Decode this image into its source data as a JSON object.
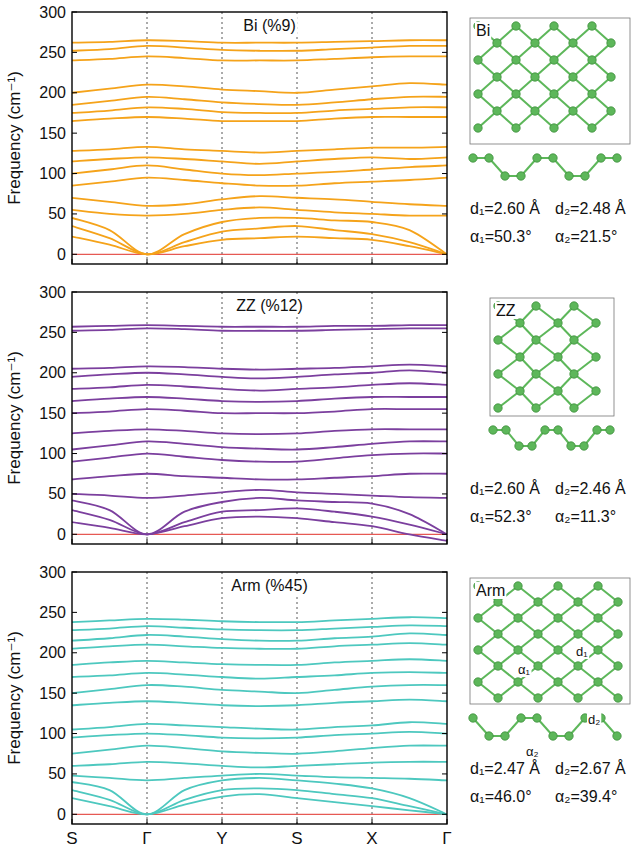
{
  "chart_data": [
    {
      "type": "line",
      "title": "Bi (%9)",
      "y_label": "Frequency (cm⁻¹)",
      "color": "#f5a31a",
      "x": [
        0,
        0.5,
        1,
        1.5,
        2,
        2.5,
        3,
        3.5,
        4,
        4.5,
        5
      ],
      "xlim": [
        0,
        5
      ],
      "xticks": [
        {
          "value": 0,
          "label": "S"
        },
        {
          "value": 1,
          "label": "Γ"
        },
        {
          "value": 2,
          "label": "Y"
        },
        {
          "value": 3,
          "label": "S"
        },
        {
          "value": 4,
          "label": "X"
        },
        {
          "value": 5,
          "label": "Γ"
        }
      ],
      "ylim": [
        -12,
        300
      ],
      "yticks": [
        0,
        50,
        100,
        150,
        200,
        250,
        300
      ],
      "grid": true,
      "tick_labels": "y",
      "structure_label": "Bi",
      "annotations": [
        "d₁=2.60 Å",
        "d₂=2.48 Å",
        "α₁=50.3°",
        "α₂=21.5°"
      ],
      "series": [
        {
          "values": [
            22,
            12,
            0,
            10,
            18,
            20,
            22,
            20,
            18,
            10,
            0
          ]
        },
        {
          "values": [
            35,
            20,
            0,
            15,
            28,
            32,
            35,
            30,
            25,
            15,
            0
          ]
        },
        {
          "values": [
            45,
            30,
            0,
            25,
            40,
            45,
            45,
            42,
            40,
            30,
            0
          ]
        },
        {
          "values": [
            55,
            50,
            48,
            50,
            55,
            58,
            55,
            52,
            50,
            48,
            48
          ]
        },
        {
          "values": [
            70,
            65,
            60,
            62,
            68,
            72,
            70,
            68,
            65,
            62,
            60
          ]
        },
        {
          "values": [
            85,
            90,
            95,
            92,
            88,
            85,
            85,
            88,
            90,
            92,
            95
          ]
        },
        {
          "values": [
            100,
            105,
            110,
            105,
            100,
            98,
            100,
            102,
            105,
            108,
            110
          ]
        },
        {
          "values": [
            115,
            118,
            120,
            118,
            115,
            112,
            115,
            118,
            120,
            118,
            120
          ]
        },
        {
          "values": [
            128,
            130,
            133,
            130,
            128,
            126,
            128,
            130,
            132,
            132,
            133
          ]
        },
        {
          "values": [
            165,
            168,
            170,
            168,
            165,
            165,
            165,
            168,
            170,
            170,
            170
          ]
        },
        {
          "values": [
            175,
            178,
            182,
            180,
            176,
            175,
            175,
            178,
            180,
            182,
            182
          ]
        },
        {
          "values": [
            185,
            190,
            195,
            192,
            188,
            186,
            185,
            188,
            192,
            195,
            195
          ]
        },
        {
          "values": [
            200,
            205,
            210,
            208,
            204,
            202,
            200,
            204,
            208,
            212,
            210
          ]
        },
        {
          "values": [
            240,
            242,
            245,
            243,
            240,
            240,
            240,
            242,
            244,
            245,
            245
          ]
        },
        {
          "values": [
            252,
            254,
            258,
            256,
            253,
            252,
            252,
            254,
            256,
            258,
            258
          ]
        },
        {
          "values": [
            262,
            263,
            265,
            264,
            262,
            262,
            262,
            263,
            264,
            265,
            265
          ]
        }
      ]
    },
    {
      "type": "line",
      "title": "ZZ (%12)",
      "y_label": "Frequency (cm⁻¹)",
      "color": "#7b3f9e",
      "x": [
        0,
        0.5,
        1,
        1.5,
        2,
        2.5,
        3,
        3.5,
        4,
        4.5,
        5
      ],
      "xlim": [
        0,
        5
      ],
      "xticks": [
        {
          "value": 0,
          "label": "S"
        },
        {
          "value": 1,
          "label": "Γ"
        },
        {
          "value": 2,
          "label": "Y"
        },
        {
          "value": 3,
          "label": "S"
        },
        {
          "value": 4,
          "label": "X"
        },
        {
          "value": 5,
          "label": "Γ"
        }
      ],
      "ylim": [
        -12,
        300
      ],
      "yticks": [
        0,
        50,
        100,
        150,
        200,
        250,
        300
      ],
      "grid": true,
      "tick_labels": "y",
      "structure_label": "ZZ",
      "annotations": [
        "d₁=2.60 Å",
        "d₂=2.46 Å",
        "α₁=52.3°",
        "α₂=11.3°"
      ],
      "series": [
        {
          "values": [
            15,
            8,
            0,
            10,
            20,
            22,
            20,
            15,
            10,
            0,
            -8
          ]
        },
        {
          "values": [
            30,
            18,
            0,
            15,
            28,
            30,
            32,
            28,
            22,
            12,
            0
          ]
        },
        {
          "values": [
            42,
            30,
            0,
            28,
            40,
            45,
            42,
            40,
            38,
            25,
            0
          ]
        },
        {
          "values": [
            50,
            48,
            45,
            48,
            52,
            55,
            52,
            50,
            48,
            46,
            45
          ]
        },
        {
          "values": [
            68,
            72,
            75,
            72,
            70,
            68,
            68,
            70,
            72,
            75,
            75
          ]
        },
        {
          "values": [
            90,
            95,
            100,
            96,
            92,
            90,
            90,
            94,
            98,
            100,
            100
          ]
        },
        {
          "values": [
            105,
            110,
            115,
            112,
            108,
            106,
            105,
            108,
            112,
            115,
            115
          ]
        },
        {
          "values": [
            125,
            128,
            130,
            128,
            125,
            124,
            125,
            128,
            130,
            130,
            130
          ]
        },
        {
          "values": [
            150,
            152,
            155,
            153,
            150,
            150,
            150,
            152,
            155,
            155,
            155
          ]
        },
        {
          "values": [
            165,
            168,
            170,
            168,
            165,
            164,
            165,
            168,
            170,
            170,
            170
          ]
        },
        {
          "values": [
            180,
            182,
            185,
            183,
            180,
            178,
            180,
            182,
            185,
            187,
            185
          ]
        },
        {
          "values": [
            195,
            198,
            200,
            198,
            195,
            193,
            195,
            198,
            200,
            203,
            200
          ]
        },
        {
          "values": [
            205,
            206,
            208,
            207,
            205,
            204,
            205,
            206,
            208,
            210,
            208
          ]
        },
        {
          "values": [
            252,
            253,
            255,
            254,
            252,
            252,
            252,
            253,
            254,
            255,
            255
          ]
        },
        {
          "values": [
            257,
            258,
            259,
            258,
            257,
            257,
            257,
            258,
            258,
            259,
            259
          ]
        }
      ]
    },
    {
      "type": "line",
      "title": "Arm (%45)",
      "y_label": "Frequency (cm⁻¹)",
      "color": "#4dc8bf",
      "x": [
        0,
        0.5,
        1,
        1.5,
        2,
        2.5,
        3,
        3.5,
        4,
        4.5,
        5
      ],
      "xlim": [
        0,
        5
      ],
      "xticks": [
        {
          "value": 0,
          "label": "S"
        },
        {
          "value": 1,
          "label": "Γ"
        },
        {
          "value": 2,
          "label": "Y"
        },
        {
          "value": 3,
          "label": "S"
        },
        {
          "value": 4,
          "label": "X"
        },
        {
          "value": 5,
          "label": "Γ"
        }
      ],
      "ylim": [
        -12,
        300
      ],
      "yticks": [
        0,
        50,
        100,
        150,
        200,
        250,
        300
      ],
      "grid": true,
      "structure_label": "Arm",
      "structure_marks": [
        "d₁",
        "α₁",
        "d₂",
        "α₂"
      ],
      "annotations": [
        "d₁=2.47 Å",
        "d₂=2.67 Å",
        "α₁=46.0°",
        "α₂=39.4°"
      ],
      "series": [
        {
          "values": [
            20,
            10,
            0,
            12,
            22,
            25,
            20,
            15,
            10,
            5,
            0
          ]
        },
        {
          "values": [
            30,
            18,
            0,
            18,
            30,
            32,
            30,
            25,
            20,
            10,
            0
          ]
        },
        {
          "values": [
            40,
            30,
            0,
            30,
            42,
            45,
            42,
            38,
            32,
            20,
            0
          ]
        },
        {
          "values": [
            48,
            45,
            42,
            45,
            48,
            50,
            48,
            46,
            45,
            44,
            42
          ]
        },
        {
          "values": [
            60,
            62,
            65,
            63,
            60,
            58,
            60,
            62,
            64,
            65,
            65
          ]
        },
        {
          "values": [
            75,
            80,
            85,
            82,
            78,
            76,
            75,
            78,
            82,
            85,
            85
          ]
        },
        {
          "values": [
            95,
            98,
            100,
            98,
            95,
            94,
            95,
            98,
            100,
            102,
            100
          ]
        },
        {
          "values": [
            105,
            108,
            112,
            110,
            108,
            106,
            105,
            108,
            110,
            114,
            112
          ]
        },
        {
          "values": [
            135,
            138,
            140,
            138,
            135,
            134,
            135,
            138,
            140,
            142,
            140
          ]
        },
        {
          "values": [
            150,
            155,
            160,
            158,
            154,
            152,
            150,
            154,
            158,
            160,
            160
          ]
        },
        {
          "values": [
            170,
            172,
            175,
            173,
            170,
            168,
            170,
            172,
            175,
            176,
            175
          ]
        },
        {
          "values": [
            185,
            188,
            190,
            188,
            186,
            185,
            185,
            188,
            190,
            192,
            190
          ]
        },
        {
          "values": [
            205,
            208,
            210,
            208,
            206,
            205,
            205,
            208,
            210,
            212,
            210
          ]
        },
        {
          "values": [
            215,
            218,
            222,
            220,
            217,
            215,
            215,
            218,
            220,
            224,
            222
          ]
        },
        {
          "values": [
            228,
            230,
            233,
            231,
            229,
            228,
            228,
            230,
            232,
            234,
            233
          ]
        },
        {
          "values": [
            238,
            240,
            242,
            241,
            239,
            238,
            238,
            240,
            242,
            244,
            243
          ]
        }
      ]
    }
  ]
}
